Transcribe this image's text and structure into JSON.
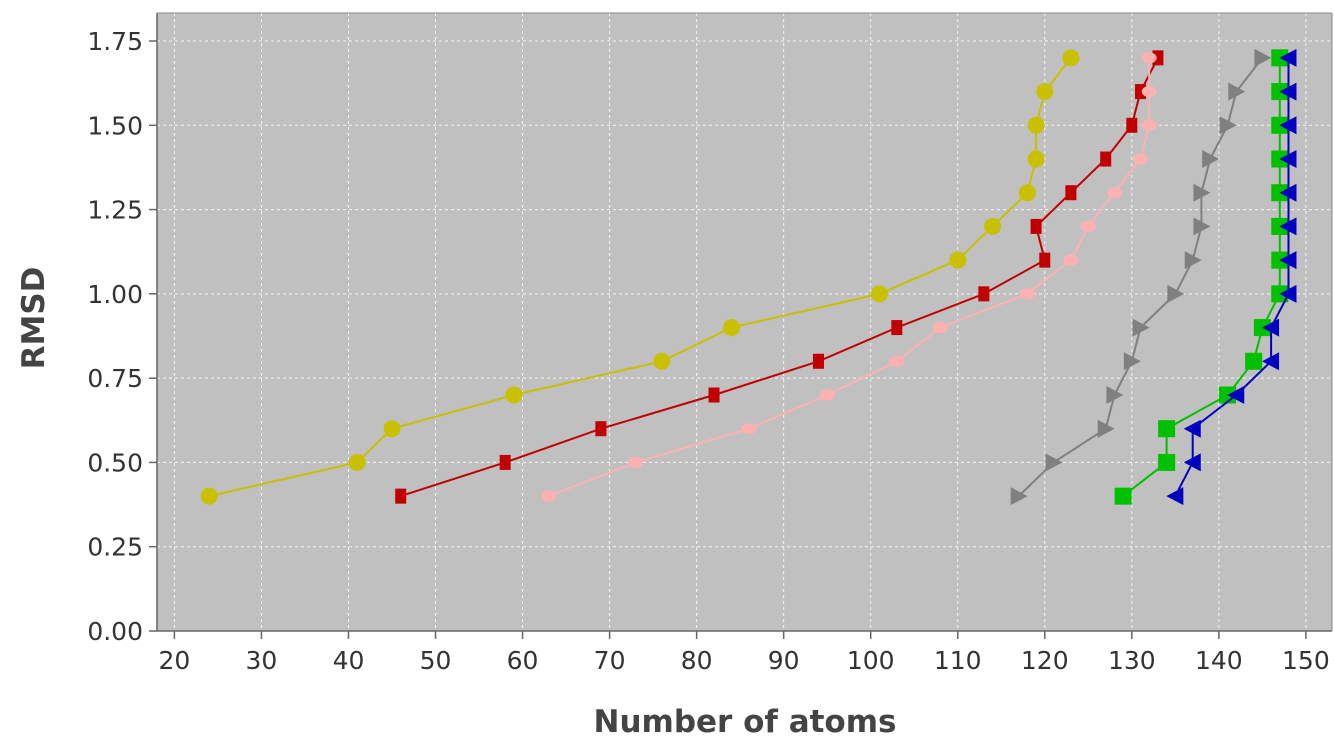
{
  "chart_data": {
    "type": "line",
    "title": "",
    "xlabel": "Number of atoms",
    "ylabel": "RMSD",
    "xlim": [
      18,
      153
    ],
    "ylim": [
      0.0,
      1.75
    ],
    "x_ticks": [
      20,
      30,
      40,
      50,
      60,
      70,
      80,
      90,
      100,
      110,
      120,
      130,
      140,
      150
    ],
    "y_ticks": [
      "0.00",
      "0.25",
      "0.50",
      "0.75",
      "1.00",
      "1.25",
      "1.50",
      "1.75"
    ],
    "grid": true,
    "legend": "none",
    "plot_background": "#c0c0c0",
    "series": [
      {
        "color": "#c8c000",
        "marker": "circle",
        "points": [
          [
            24,
            0.4
          ],
          [
            41,
            0.5
          ],
          [
            45,
            0.6
          ],
          [
            59,
            0.7
          ],
          [
            76,
            0.8
          ],
          [
            84,
            0.9
          ],
          [
            101,
            1.0
          ],
          [
            110,
            1.1
          ],
          [
            114,
            1.2
          ],
          [
            118,
            1.3
          ],
          [
            119,
            1.4
          ],
          [
            119,
            1.5
          ],
          [
            120,
            1.6
          ],
          [
            123,
            1.7
          ]
        ]
      },
      {
        "color": "#c00000",
        "marker": "rect",
        "points": [
          [
            46,
            0.4
          ],
          [
            58,
            0.5
          ],
          [
            69,
            0.6
          ],
          [
            82,
            0.7
          ],
          [
            94,
            0.8
          ],
          [
            103,
            0.9
          ],
          [
            113,
            1.0
          ],
          [
            120,
            1.1
          ],
          [
            119,
            1.2
          ],
          [
            123,
            1.3
          ],
          [
            127,
            1.4
          ],
          [
            130,
            1.5
          ],
          [
            131,
            1.6
          ],
          [
            133,
            1.7
          ]
        ]
      },
      {
        "color": "#ffb0b0",
        "marker": "ellipse",
        "points": [
          [
            63,
            0.4
          ],
          [
            73,
            0.5
          ],
          [
            86,
            0.6
          ],
          [
            95,
            0.7
          ],
          [
            103,
            0.8
          ],
          [
            108,
            0.9
          ],
          [
            118,
            1.0
          ],
          [
            123,
            1.1
          ],
          [
            125,
            1.2
          ],
          [
            128,
            1.3
          ],
          [
            131,
            1.4
          ],
          [
            132,
            1.5
          ],
          [
            132,
            1.6
          ],
          [
            132,
            1.7
          ]
        ]
      },
      {
        "color": "#808080",
        "marker": "triangle-right",
        "points": [
          [
            117,
            0.4
          ],
          [
            121,
            0.5
          ],
          [
            127,
            0.6
          ],
          [
            128,
            0.7
          ],
          [
            130,
            0.8
          ],
          [
            131,
            0.9
          ],
          [
            135,
            1.0
          ],
          [
            137,
            1.1
          ],
          [
            138,
            1.2
          ],
          [
            138,
            1.3
          ],
          [
            139,
            1.4
          ],
          [
            141,
            1.5
          ],
          [
            142,
            1.6
          ],
          [
            145,
            1.7
          ]
        ]
      },
      {
        "color": "#00c000",
        "marker": "square",
        "points": [
          [
            129,
            0.4
          ],
          [
            134,
            0.5
          ],
          [
            134,
            0.6
          ],
          [
            141,
            0.7
          ],
          [
            144,
            0.8
          ],
          [
            145,
            0.9
          ],
          [
            147,
            1.0
          ],
          [
            147,
            1.1
          ],
          [
            147,
            1.2
          ],
          [
            147,
            1.3
          ],
          [
            147,
            1.4
          ],
          [
            147,
            1.5
          ],
          [
            147,
            1.6
          ],
          [
            147,
            1.7
          ]
        ]
      },
      {
        "color": "#0000c0",
        "marker": "triangle-left",
        "points": [
          [
            135,
            0.4
          ],
          [
            137,
            0.5
          ],
          [
            137,
            0.6
          ],
          [
            142,
            0.7
          ],
          [
            146,
            0.8
          ],
          [
            146,
            0.9
          ],
          [
            148,
            1.0
          ],
          [
            148,
            1.1
          ],
          [
            148,
            1.2
          ],
          [
            148,
            1.3
          ],
          [
            148,
            1.4
          ],
          [
            148,
            1.5
          ],
          [
            148,
            1.6
          ],
          [
            148,
            1.7
          ]
        ]
      }
    ]
  }
}
